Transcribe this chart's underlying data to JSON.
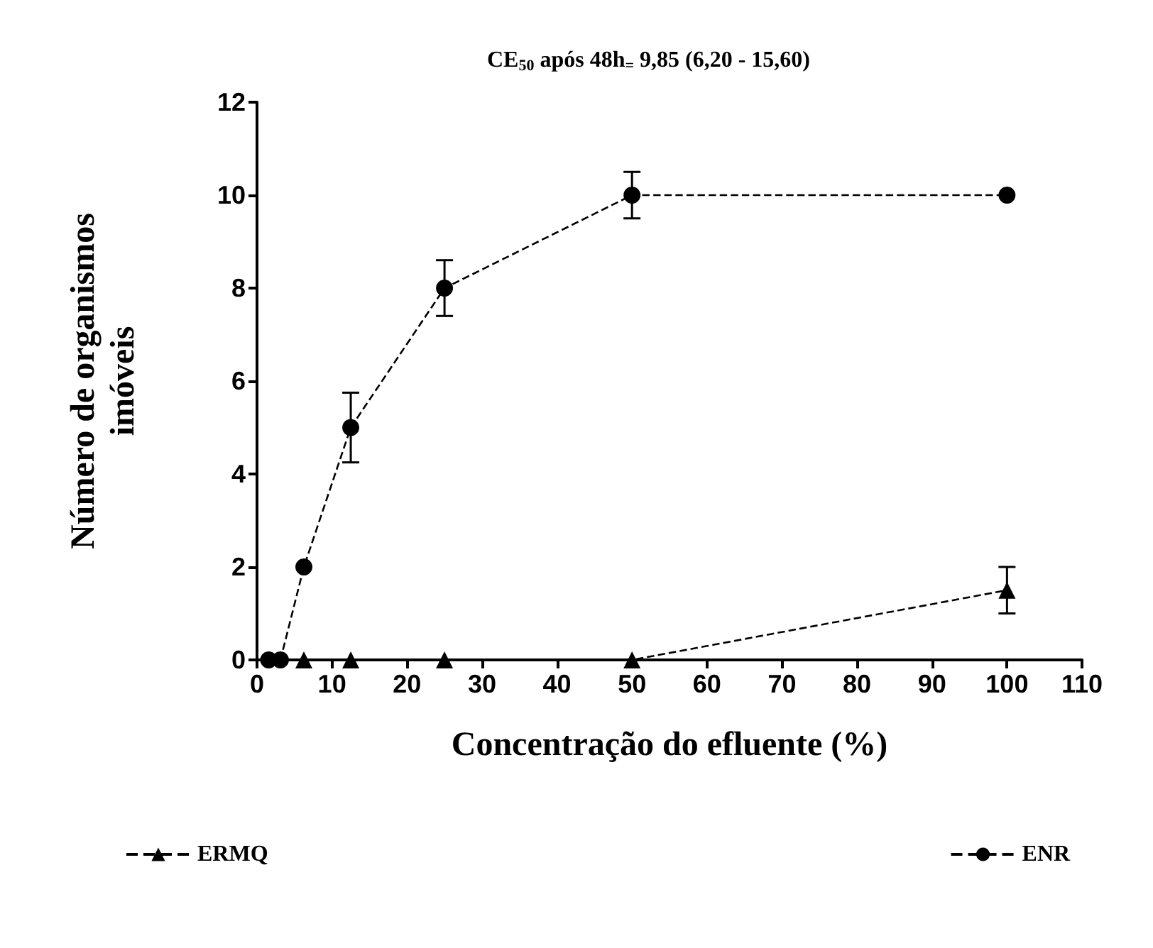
{
  "chart_data": {
    "type": "line",
    "title": "CE$_{50}$ após 48h$_{=}$ 9,85 (6,20 - 15,60)",
    "xlabel": "Concentração do efluente (%)",
    "ylabel": "Número de organismos\nimóveis",
    "x": [
      1.56,
      3.125,
      6.25,
      12.5,
      25,
      50,
      100
    ],
    "series": [
      {
        "name": "ERMQ",
        "color": "#000000",
        "marker": "triangle",
        "values": [
          null,
          null,
          0,
          0,
          0,
          0,
          1.5
        ],
        "errors": [
          null,
          null,
          null,
          null,
          null,
          null,
          0.5
        ]
      },
      {
        "name": "ENR",
        "color": "#000000",
        "marker": "circle",
        "values": [
          0,
          0,
          2,
          5,
          8,
          10,
          10
        ],
        "errors": [
          null,
          null,
          null,
          0.75,
          0.6,
          0.5,
          null
        ]
      }
    ],
    "xlim": [
      0,
      110
    ],
    "xticks": [
      0,
      10,
      20,
      30,
      40,
      50,
      60,
      70,
      80,
      90,
      100,
      110
    ],
    "ylim": [
      0,
      12
    ],
    "yticks": [
      0,
      2,
      4,
      6,
      8,
      10,
      12
    ],
    "line_style": "dashed",
    "grid": false,
    "legend": "bottom"
  }
}
